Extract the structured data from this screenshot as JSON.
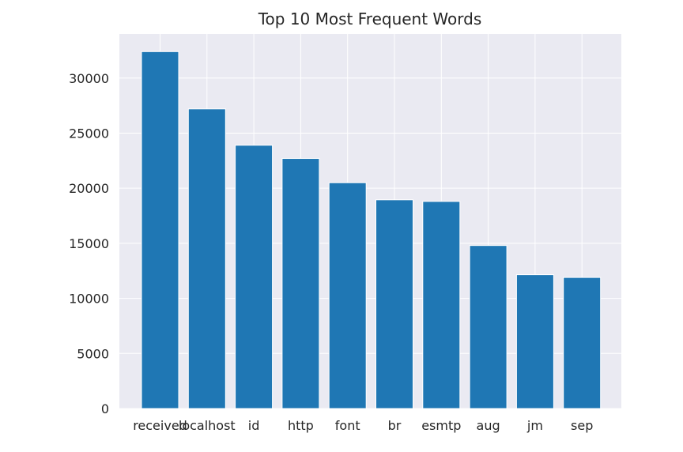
{
  "colors": {
    "plot_background": "#eaeaf2",
    "grid": "#ffffff",
    "bar": "#1f77b4",
    "bar_edge": "#ffffff",
    "text": "#262626"
  },
  "chart_data": {
    "type": "bar",
    "title": "Top 10 Most Frequent Words",
    "xlabel": "",
    "ylabel": "",
    "categories": [
      "received",
      "localhost",
      "id",
      "http",
      "font",
      "br",
      "esmtp",
      "aug",
      "jm",
      "sep"
    ],
    "values": [
      32400,
      27200,
      23900,
      22700,
      20500,
      18950,
      18800,
      14800,
      12150,
      11900
    ],
    "ylim": [
      0,
      34000
    ],
    "yticks": [
      0,
      5000,
      10000,
      15000,
      20000,
      25000,
      30000
    ],
    "grid": true,
    "legend": "none"
  }
}
